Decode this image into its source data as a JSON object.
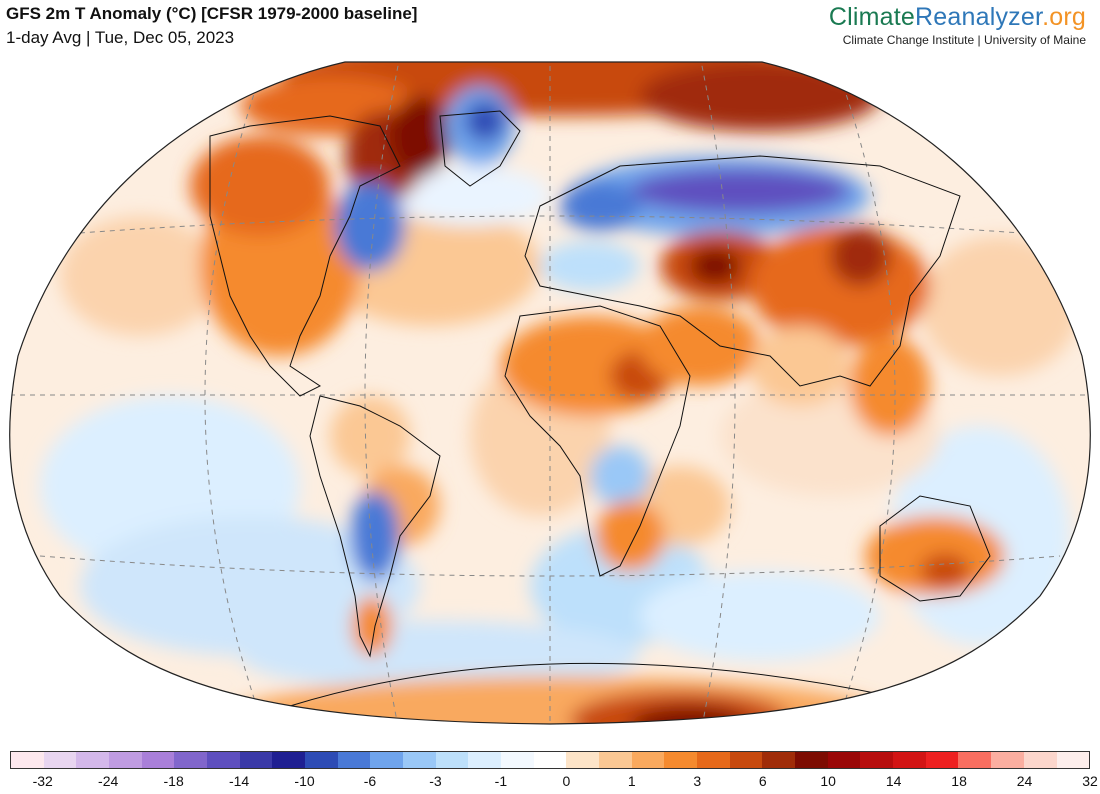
{
  "header": {
    "title": "GFS 2m T Anomaly (°C) [CFSR 1979-2000 baseline]",
    "subtitle": "1-day Avg | Tue, Dec 05, 2023"
  },
  "brand": {
    "name_part1": "Climate",
    "name_part2": "Reanalyzer",
    "name_part3": ".org",
    "tagline": "Climate Change Institute | University of Maine"
  },
  "colors": {
    "ocean_neutral": "#ffffff",
    "land_outline": "#111111",
    "graticule": "#888888"
  },
  "colorbar": {
    "colors": [
      "#fde8ee",
      "#e8d5f0",
      "#d4b8ea",
      "#c09ce2",
      "#a97fd9",
      "#8166cc",
      "#5e4fbf",
      "#3b3aa8",
      "#1f1f92",
      "#2d4bb5",
      "#4a79d6",
      "#6fa4ec",
      "#9ac8f7",
      "#bde0fb",
      "#dcefff",
      "#f3f9ff",
      "#ffffff",
      "#fde4c8",
      "#fbc894",
      "#f9a95e",
      "#f58a2e",
      "#e6691a",
      "#c84a0e",
      "#a02c08",
      "#7d0c02",
      "#9a0606",
      "#b70d0d",
      "#d31414",
      "#ee2020",
      "#f86e60",
      "#fbaea0",
      "#fcd6cc",
      "#fdeeec"
    ],
    "tick_labels": [
      "-32",
      "-24",
      "-18",
      "-14",
      "-10",
      "-6",
      "-3",
      "-1",
      "0",
      "1",
      "3",
      "6",
      "10",
      "14",
      "18",
      "24",
      "32"
    ]
  },
  "map": {
    "projection": "Winkel Tripel / Robinson-like global",
    "variable": "2m temperature anomaly",
    "warm_regions": [
      {
        "name": "Western North America",
        "anomaly": 8
      },
      {
        "name": "Canadian Arctic",
        "anomaly": 14
      },
      {
        "name": "North Africa / Sahara",
        "anomaly": 8
      },
      {
        "name": "Central Asia / Kazakhstan",
        "anomaly": 16
      },
      {
        "name": "Eastern Siberia / China",
        "anomaly": 10
      },
      {
        "name": "Australia",
        "anomaly": 8
      },
      {
        "name": "East Antarctica",
        "anomaly": 18
      },
      {
        "name": "Southern Africa",
        "anomaly": 6
      },
      {
        "name": "Arctic Ocean",
        "anomaly": 14
      }
    ],
    "cold_regions": [
      {
        "name": "Northern Russia / Scandinavia",
        "anomaly": -14
      },
      {
        "name": "Greenland",
        "anomaly": -8
      },
      {
        "name": "Labrador / Quebec",
        "anomaly": -8
      },
      {
        "name": "Central South America",
        "anomaly": -8
      },
      {
        "name": "Southern Ocean",
        "anomaly": -3
      }
    ]
  }
}
